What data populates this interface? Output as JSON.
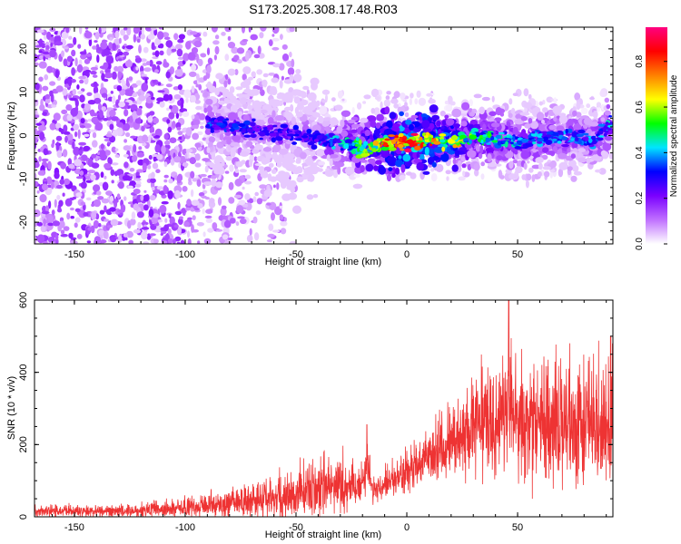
{
  "title": "S173.2025.308.17.48.R03",
  "chart_data": [
    {
      "type": "heatmap",
      "title": "S173.2025.308.17.48.R03",
      "xlabel": "Height of straight line (km)",
      "ylabel": "Frequency (Hz)",
      "xlim": [
        -168,
        93
      ],
      "ylim": [
        -25,
        25
      ],
      "xticks": [
        -150,
        -100,
        -50,
        0,
        50
      ],
      "yticks": [
        -20,
        -10,
        0,
        10,
        20
      ],
      "grid": false,
      "colorbar": {
        "label": "Normalized spectral amplitude",
        "range": [
          0,
          0.95
        ],
        "ticks": [
          0.0,
          0.2,
          0.4,
          0.6,
          0.8
        ],
        "colors": [
          "#ffffff",
          "#c070ff",
          "#7a00ff",
          "#0000ff",
          "#00e5ff",
          "#00ff00",
          "#ffff00",
          "#ff8000",
          "#ff0000",
          "#ff0080"
        ]
      },
      "ridge": {
        "description": "narrow high-amplitude band near 0 Hz",
        "points": [
          {
            "x": -90,
            "y": 3,
            "amplitude": 0.35
          },
          {
            "x": -50,
            "y": 0,
            "amplitude": 0.3
          },
          {
            "x": -30,
            "y": -1.5,
            "amplitude": 0.45
          },
          {
            "x": -20,
            "y": -3,
            "amplitude": 0.6
          },
          {
            "x": -10,
            "y": -2,
            "amplitude": 0.8
          },
          {
            "x": 0,
            "y": -1.5,
            "amplitude": 0.9
          },
          {
            "x": 10,
            "y": -1,
            "amplitude": 0.85
          },
          {
            "x": 20,
            "y": -1.5,
            "amplitude": 0.75
          },
          {
            "x": 30,
            "y": 0,
            "amplitude": 0.55
          },
          {
            "x": 50,
            "y": -1.5,
            "amplitude": 0.45
          },
          {
            "x": 70,
            "y": 0,
            "amplitude": 0.4
          },
          {
            "x": 85,
            "y": -1,
            "amplitude": 0.4
          },
          {
            "x": 92,
            "y": 3,
            "amplitude": 0.45
          }
        ]
      },
      "scatter_regions": [
        {
          "x_range": [
            -168,
            -100
          ],
          "y_range": [
            -25,
            25
          ],
          "density": "high",
          "amplitude": 0.15
        },
        {
          "x_range": [
            -100,
            -50
          ],
          "y_range": [
            -25,
            25
          ],
          "density": "medium",
          "amplitude": 0.1
        },
        {
          "x_range": [
            -50,
            93
          ],
          "y_range": [
            -10,
            10
          ],
          "density": "low",
          "amplitude": 0.05
        }
      ]
    },
    {
      "type": "line",
      "xlabel": "Height of straight line (km)",
      "ylabel": "SNR (10 * v/v)",
      "xlim": [
        -168,
        93
      ],
      "ylim": [
        0,
        600
      ],
      "xticks": [
        -150,
        -100,
        -50,
        0,
        50
      ],
      "yticks": [
        0,
        200,
        400,
        600
      ],
      "grid": false,
      "series": [
        {
          "name": "SNR",
          "color": "#ee3333",
          "envelope": [
            {
              "x": -168,
              "mean": 15,
              "spread": 12
            },
            {
              "x": -140,
              "mean": 15,
              "spread": 12
            },
            {
              "x": -110,
              "mean": 20,
              "spread": 15
            },
            {
              "x": -90,
              "mean": 30,
              "spread": 25
            },
            {
              "x": -70,
              "mean": 45,
              "spread": 35
            },
            {
              "x": -50,
              "mean": 60,
              "spread": 50
            },
            {
              "x": -35,
              "mean": 80,
              "spread": 60
            },
            {
              "x": -25,
              "mean": 85,
              "spread": 55
            },
            {
              "x": -20,
              "mean": 90,
              "spread": 40
            },
            {
              "x": -18,
              "mean": 150,
              "spread": 60
            },
            {
              "x": -15,
              "mean": 70,
              "spread": 25
            },
            {
              "x": -10,
              "mean": 90,
              "spread": 30
            },
            {
              "x": 0,
              "mean": 120,
              "spread": 40
            },
            {
              "x": 10,
              "mean": 160,
              "spread": 50
            },
            {
              "x": 20,
              "mean": 200,
              "spread": 70
            },
            {
              "x": 30,
              "mean": 240,
              "spread": 100
            },
            {
              "x": 45,
              "mean": 270,
              "spread": 130
            },
            {
              "x": 60,
              "mean": 250,
              "spread": 130
            },
            {
              "x": 75,
              "mean": 250,
              "spread": 130
            },
            {
              "x": 93,
              "mean": 250,
              "spread": 130
            }
          ],
          "peaks": [
            {
              "x": -18,
              "y": 255
            },
            {
              "x": 46,
              "y": 600
            },
            {
              "x": 92,
              "y": 500
            }
          ]
        }
      ]
    }
  ]
}
